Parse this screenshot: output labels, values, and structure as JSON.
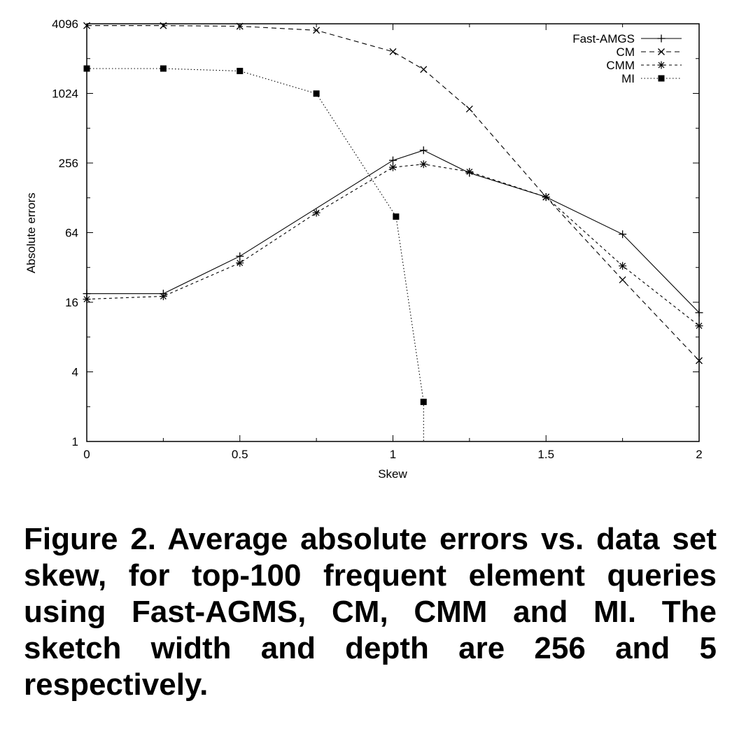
{
  "chart_data": {
    "type": "line",
    "xlabel": "Skew",
    "ylabel": "Absolute errors",
    "xlim": [
      0,
      2
    ],
    "ylim": [
      1,
      4096
    ],
    "y_scale": "log2",
    "x_ticks": [
      "0",
      "0.5",
      "1",
      "1.5",
      "2"
    ],
    "y_ticks": [
      "1",
      "4",
      "16",
      "64",
      "256",
      "1024",
      "4096"
    ],
    "x_tick_values": [
      0,
      0.5,
      1,
      1.5,
      2
    ],
    "y_tick_values": [
      1,
      4,
      16,
      64,
      256,
      1024,
      4096
    ],
    "legend_position": "top-right",
    "series": [
      {
        "name": "Fast-AMGS",
        "line_style": "solid",
        "marker": "plus",
        "x": [
          0,
          0.25,
          0.5,
          1.0,
          1.1,
          1.25,
          1.5,
          1.75,
          2.0
        ],
        "y": [
          19,
          19,
          40,
          270,
          330,
          210,
          130,
          62,
          13
        ]
      },
      {
        "name": "CM",
        "line_style": "dashed",
        "marker": "cross",
        "x": [
          0,
          0.25,
          0.5,
          0.75,
          1.0,
          1.1,
          1.25,
          1.5,
          1.75,
          2.0
        ],
        "y": [
          3950,
          3950,
          3900,
          3600,
          2350,
          1650,
          750,
          130,
          25,
          5
        ]
      },
      {
        "name": "CMM",
        "line_style": "short-dashed",
        "marker": "star",
        "x": [
          0,
          0.25,
          0.5,
          0.75,
          1.0,
          1.1,
          1.25,
          1.5,
          1.75,
          2.0
        ],
        "y": [
          17,
          18,
          35,
          95,
          235,
          250,
          215,
          130,
          33,
          10
        ]
      },
      {
        "name": "MI",
        "line_style": "dotted",
        "marker": "filled-square",
        "x": [
          0,
          0.25,
          0.5,
          0.75,
          1.01,
          1.1,
          1.1
        ],
        "y": [
          1680,
          1680,
          1600,
          1020,
          88,
          2.2,
          1
        ]
      }
    ]
  },
  "caption": "Figure 2. Average absolute errors vs. data set skew, for top-100 frequent element queries using Fast-AGMS, CM, CMM and MI. The sketch width and depth are 256 and 5 respectively."
}
